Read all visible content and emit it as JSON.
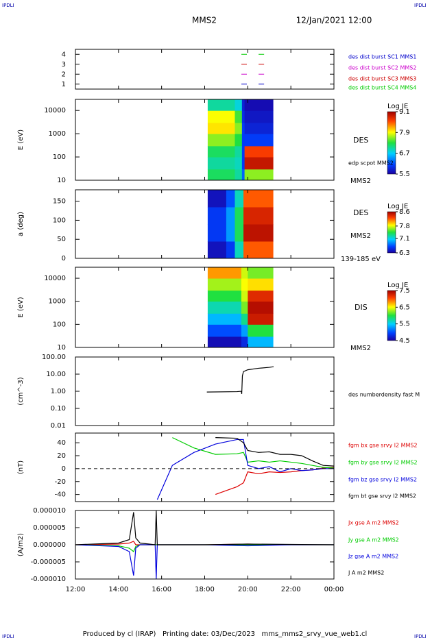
{
  "corner_label": "IPDLI",
  "title": "MMS2",
  "date": "12/Jan/2021 12:00",
  "footer": "Produced by cl (IRAP)   Printing date: 03/Dec/2023   mms_mms2_srvy_vue_web1.cl",
  "time_axis": {
    "xlim": [
      12,
      24
    ],
    "xticks": [
      {
        "value": 12,
        "label": "12:00"
      },
      {
        "value": 14,
        "label": "14:00"
      },
      {
        "value": 16,
        "label": "16:00"
      },
      {
        "value": 18,
        "label": "18:00"
      },
      {
        "value": 20,
        "label": "20:00"
      },
      {
        "value": 22,
        "label": "22:00"
      },
      {
        "value": 24,
        "label": "00:00"
      }
    ]
  },
  "chart_data": [
    {
      "type": "dash",
      "ylim": [
        0.5,
        4.5
      ],
      "yticks": [
        1,
        2,
        3,
        4
      ],
      "x": [
        19.83,
        20.63
      ],
      "series": [
        {
          "name": "des dist burst SC1 MMS1",
          "color": "#0000cc",
          "values": [
            1,
            1
          ]
        },
        {
          "name": "des dist burst SC2 MMS2",
          "color": "#cc00cc",
          "values": [
            2,
            2
          ]
        },
        {
          "name": "des dist burst SC3 MMS3",
          "color": "#cc0000",
          "values": [
            3,
            3
          ]
        },
        {
          "name": "des dist burst SC4 MMS4",
          "color": "#00cc00",
          "values": [
            4,
            4
          ]
        }
      ]
    },
    {
      "type": "heatmap",
      "ylabel": "E (eV)",
      "log_y": true,
      "ylim": [
        10,
        30000
      ],
      "yticks": [
        10,
        100,
        1000,
        10000
      ],
      "x_bins": [
        18.14,
        19.4,
        19.73,
        19.85,
        21.17
      ],
      "y_bins": [
        10,
        30,
        100,
        300,
        1000,
        3000,
        10000,
        30000
      ],
      "z": [
        [
          7.2,
          7.0,
          6.2,
          7.6
        ],
        [
          7.0,
          6.9,
          6.0,
          8.9
        ],
        [
          7.2,
          7.0,
          6.0,
          8.6
        ],
        [
          7.6,
          7.3,
          6.0,
          6.0
        ],
        [
          8.0,
          7.6,
          6.0,
          5.8
        ],
        [
          7.9,
          7.4,
          5.9,
          5.7
        ],
        [
          7.0,
          6.8,
          5.8,
          5.6
        ]
      ],
      "colorbar_title": "Log JE",
      "zlim": [
        5.5,
        9.1
      ],
      "zticks": [
        9.1,
        7.9,
        6.7,
        5.5
      ],
      "labels": [
        "DES",
        "edp scpot MMS2",
        "MMS2"
      ]
    },
    {
      "type": "heatmap",
      "ylabel": "a (deg)",
      "log_y": false,
      "ylim": [
        0,
        180
      ],
      "yticks": [
        0,
        50,
        100,
        150
      ],
      "x_bins": [
        18.14,
        19.0,
        19.4,
        19.8,
        21.17
      ],
      "y_bins": [
        0,
        45,
        90,
        135,
        180
      ],
      "z": [
        [
          6.4,
          6.6,
          7.2,
          8.2
        ],
        [
          6.6,
          6.9,
          7.4,
          8.5
        ],
        [
          6.6,
          6.9,
          7.4,
          8.4
        ],
        [
          6.4,
          6.7,
          7.2,
          8.2
        ]
      ],
      "colorbar_title": "Log JE",
      "zlim": [
        6.3,
        8.6
      ],
      "zticks": [
        8.6,
        7.8,
        7.1,
        6.3
      ],
      "labels": [
        "DES",
        "MMS2",
        "139-185 eV"
      ]
    },
    {
      "type": "heatmap",
      "ylabel": "E (eV)",
      "log_y": true,
      "ylim": [
        10,
        30000
      ],
      "yticks": [
        10,
        100,
        1000,
        10000
      ],
      "x_bins": [
        18.14,
        19.7,
        20.0,
        21.17
      ],
      "y_bins": [
        10,
        30,
        100,
        300,
        1000,
        3000,
        10000,
        30000
      ],
      "z": [
        [
          4.6,
          4.8,
          5.4
        ],
        [
          5.0,
          5.3,
          6.0
        ],
        [
          5.4,
          5.8,
          7.3
        ],
        [
          5.7,
          6.2,
          7.4
        ],
        [
          6.0,
          6.4,
          7.2
        ],
        [
          6.3,
          6.5,
          6.6
        ],
        [
          6.8,
          6.4,
          6.2
        ]
      ],
      "colorbar_title": "Log JE",
      "zlim": [
        4.5,
        7.5
      ],
      "zticks": [
        7.5,
        6.5,
        5.5,
        4.5
      ],
      "labels": [
        "DIS",
        "MMS2"
      ]
    },
    {
      "type": "line",
      "ylabel": "(cm^-3)",
      "log_y": true,
      "ylim": [
        0.01,
        100
      ],
      "yticks": [
        0.01,
        {
          "value": 0.1,
          "label": "0.10"
        },
        {
          "value": 1,
          "label": "1.00"
        },
        {
          "value": 10,
          "label": "10.00"
        },
        {
          "value": 100,
          "label": "100.00"
        }
      ],
      "x": [
        18.1,
        19.5,
        19.7,
        19.72,
        19.75,
        19.8,
        20.0,
        20.5,
        21.0,
        21.2
      ],
      "series": [
        {
          "name": "des numberdensity fast M",
          "color": "#000000",
          "values": [
            0.9,
            0.95,
            1.0,
            0.7,
            8,
            14,
            18,
            22,
            25,
            27
          ]
        }
      ]
    },
    {
      "type": "line",
      "ylabel": "(nT)",
      "log_y": false,
      "ylim": [
        -51,
        55
      ],
      "yticks": [
        -40,
        -20,
        0,
        20,
        40
      ],
      "zero_line": true,
      "x": [
        15.8,
        16.5,
        17.5,
        18.5,
        19.5,
        19.8,
        20.0,
        20.5,
        21.0,
        21.5,
        22.0,
        22.5,
        23.0,
        23.5,
        24.0
      ],
      "series": [
        {
          "name": "fgm bx gse srvy l2 MMS2",
          "color": "#dd0000",
          "values": [
            null,
            null,
            null,
            -40,
            -28,
            -22,
            -5,
            -8,
            -5,
            -6,
            -5,
            -3,
            -2,
            1,
            2
          ]
        },
        {
          "name": "fgm by gse srvy l2 MMS2",
          "color": "#00cc00",
          "values": [
            null,
            48,
            32,
            22,
            23,
            25,
            10,
            12,
            10,
            12,
            10,
            8,
            5,
            2,
            1
          ]
        },
        {
          "name": "fgm bz gse srvy l2 MMS2",
          "color": "#0000dd",
          "values": [
            -48,
            5,
            25,
            38,
            45,
            45,
            5,
            0,
            3,
            -5,
            0,
            -3,
            -2,
            0,
            0
          ]
        },
        {
          "name": "fgm bt gse srvy l2 MMS2",
          "color": "#000000",
          "values": [
            null,
            null,
            null,
            48,
            47,
            40,
            28,
            25,
            26,
            22,
            22,
            20,
            12,
            5,
            4
          ]
        }
      ]
    },
    {
      "type": "line",
      "ylabel": "(A/m2)",
      "log_y": false,
      "ylim": [
        -1e-05,
        1e-05
      ],
      "yticks": [
        {
          "value": -1e-05,
          "label": "-0.000010"
        },
        {
          "value": -5e-06,
          "label": "-0.000005"
        },
        {
          "value": 0,
          "label": "0.000000"
        },
        {
          "value": 5e-06,
          "label": "0.000005"
        },
        {
          "value": 1e-05,
          "label": "0.000010"
        }
      ],
      "x": [
        12,
        14.0,
        14.5,
        14.7,
        14.8,
        15.0,
        15.7,
        15.75,
        15.8,
        18,
        20,
        22,
        24
      ],
      "series": [
        {
          "name": "Jx gse A m2 MMS2",
          "color": "#dd0000",
          "values": [
            0,
            2e-07,
            5e-07,
            1e-06,
            0,
            0,
            0,
            0,
            0,
            0,
            2e-07,
            0,
            0
          ]
        },
        {
          "name": "Jy gse A m2 MMS2",
          "color": "#00cc00",
          "values": [
            0,
            -3e-07,
            -1e-06,
            -2e-06,
            -5e-07,
            0,
            0,
            0,
            0,
            0,
            0,
            0,
            0
          ]
        },
        {
          "name": "Jz gse A m2 MMS2",
          "color": "#0000dd",
          "values": [
            0,
            -5e-07,
            -2e-06,
            -9e-06,
            -1e-06,
            0,
            0,
            -1e-05,
            0,
            0,
            -3e-07,
            0,
            0
          ]
        },
        {
          "name": "J A m2 MMS2",
          "color": "#000000",
          "values": [
            0,
            5e-07,
            1.5e-06,
            9.5e-06,
            2e-06,
            5e-07,
            0,
            1e-05,
            0,
            0,
            2e-07,
            1e-07,
            0
          ]
        }
      ]
    }
  ]
}
